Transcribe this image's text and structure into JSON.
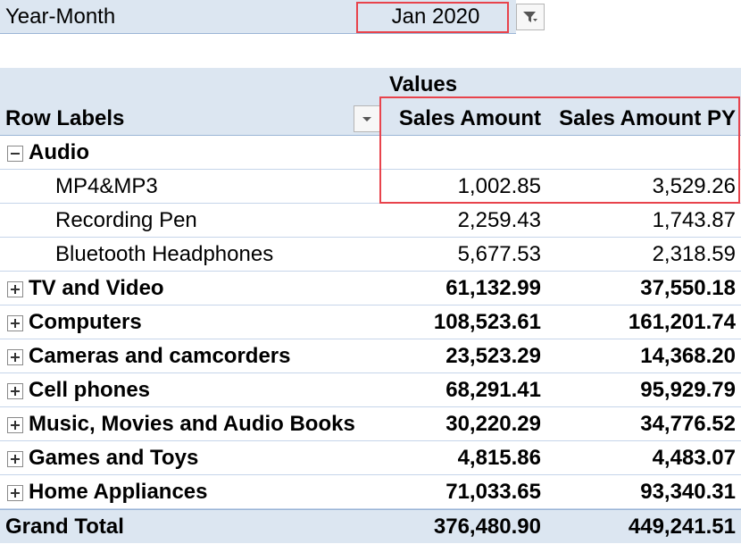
{
  "filter": {
    "label": "Year-Month",
    "value": "Jan 2020",
    "icon": "filter-icon"
  },
  "pivot": {
    "values_header": "Values",
    "row_labels_header": "Row Labels",
    "columns": [
      "Sales Amount",
      "Sales Amount PY"
    ],
    "expanded_category": {
      "label": "Audio",
      "children": [
        {
          "label": "MP4&MP3",
          "sales": "1,002.85",
          "py": "3,529.26"
        },
        {
          "label": "Recording Pen",
          "sales": "2,259.43",
          "py": "1,743.87"
        },
        {
          "label": "Bluetooth Headphones",
          "sales": "5,677.53",
          "py": "2,318.59"
        }
      ]
    },
    "categories": [
      {
        "label": "TV and Video",
        "sales": "61,132.99",
        "py": "37,550.18"
      },
      {
        "label": "Computers",
        "sales": "108,523.61",
        "py": "161,201.74"
      },
      {
        "label": "Cameras and camcorders",
        "sales": "23,523.29",
        "py": "14,368.20"
      },
      {
        "label": "Cell phones",
        "sales": "68,291.41",
        "py": "95,929.79"
      },
      {
        "label": "Music, Movies and Audio Books",
        "sales": "30,220.29",
        "py": "34,776.52"
      },
      {
        "label": "Games and Toys",
        "sales": "4,815.86",
        "py": "4,483.07"
      },
      {
        "label": "Home Appliances",
        "sales": "71,033.65",
        "py": "93,340.31"
      }
    ],
    "grand_total": {
      "label": "Grand Total",
      "sales": "376,480.90",
      "py": "449,241.51"
    }
  },
  "colors": {
    "header_bg": "#dce6f1",
    "highlight": "#e8434c"
  }
}
